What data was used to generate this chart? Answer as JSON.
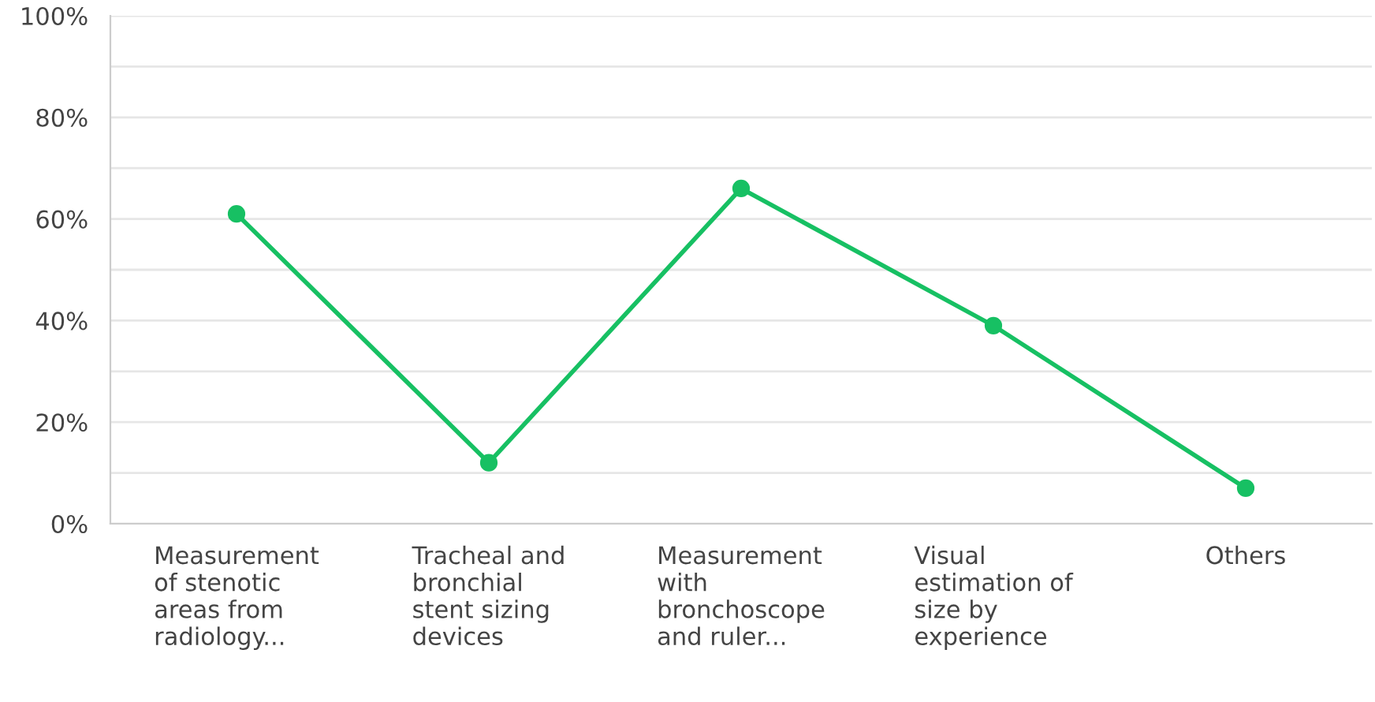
{
  "chart_data": {
    "type": "line",
    "categories": [
      "Measurement\nof stenotic\nareas from\nradiology...",
      "Tracheal and\nbronchial\nstent sizing\ndevices",
      "Measurement\nwith\nbronchoscope\nand ruler...",
      "Visual\nestimation of\nsize by\nexperience",
      "Others"
    ],
    "series": [
      {
        "color": "#17c063",
        "values": [
          61,
          12,
          66,
          39,
          7
        ]
      }
    ],
    "ylim": [
      0,
      100
    ],
    "yticks": [
      {
        "value": 0,
        "label": "0%"
      },
      {
        "value": 10,
        "label": null
      },
      {
        "value": 20,
        "label": "20%"
      },
      {
        "value": 30,
        "label": null
      },
      {
        "value": 40,
        "label": "40%"
      },
      {
        "value": 50,
        "label": null
      },
      {
        "value": 60,
        "label": "60%"
      },
      {
        "value": 70,
        "label": null
      },
      {
        "value": 80,
        "label": "80%"
      },
      {
        "value": 90,
        "label": null
      },
      {
        "value": 100,
        "label": "100%"
      }
    ],
    "grid": "y",
    "marker": "circle",
    "line_style": "solid",
    "legend": false
  }
}
